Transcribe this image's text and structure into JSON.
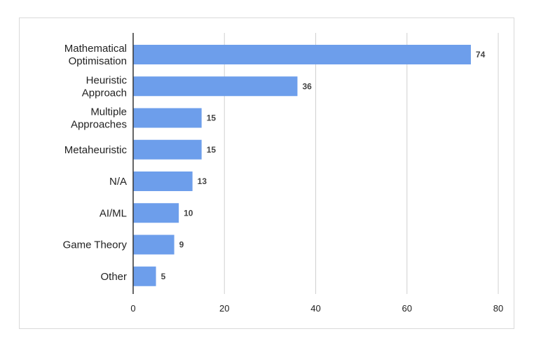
{
  "chart_data": {
    "type": "bar",
    "orientation": "horizontal",
    "categories": [
      [
        "Mathematical",
        "Optimisation"
      ],
      [
        "Heuristic",
        "Approach"
      ],
      [
        "Multiple",
        "Approaches"
      ],
      [
        "Metaheuristic"
      ],
      [
        "N/A"
      ],
      [
        "AI/ML"
      ],
      [
        "Game Theory"
      ],
      [
        "Other"
      ]
    ],
    "values": [
      74,
      36,
      15,
      15,
      13,
      10,
      9,
      5
    ],
    "xlim": [
      0,
      80
    ],
    "xticks": [
      0,
      20,
      40,
      60,
      80
    ],
    "bar_color": "#6d9eeb",
    "grid": true,
    "data_labels": true,
    "legend": "none",
    "title": "",
    "xlabel": "",
    "ylabel": ""
  }
}
